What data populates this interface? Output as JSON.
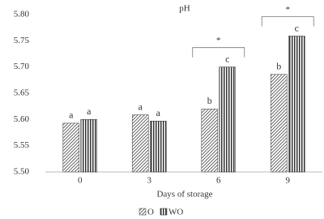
{
  "chart_data": {
    "type": "bar",
    "title": "pH",
    "x_label": "Days of storage",
    "categories": [
      "0",
      "3",
      "6",
      "9"
    ],
    "series": [
      {
        "name": "O",
        "color": "#555555",
        "pattern": "diagonal",
        "values": [
          5.593,
          5.609,
          5.62,
          5.686
        ],
        "labels": [
          "a",
          "a",
          "b",
          "b"
        ]
      },
      {
        "name": "WO",
        "color": "#333333",
        "pattern": "vertical",
        "values": [
          5.6,
          5.597,
          5.7,
          5.759
        ],
        "labels": [
          "a",
          "a",
          "c",
          "c"
        ]
      }
    ],
    "significance_labels": [
      null,
      null,
      "*",
      "*"
    ],
    "ylim": [
      5.5,
      5.8
    ],
    "yticks": [
      {
        "value": 5.5,
        "label": "5.50"
      },
      {
        "value": 5.55,
        "label": "5.55"
      },
      {
        "value": 5.6,
        "label": "5.60"
      },
      {
        "value": 5.65,
        "label": "5.65"
      },
      {
        "value": 5.7,
        "label": "5.70"
      },
      {
        "value": 5.75,
        "label": "5.75"
      },
      {
        "value": 5.8,
        "label": "5.80"
      }
    ],
    "grid": false
  }
}
